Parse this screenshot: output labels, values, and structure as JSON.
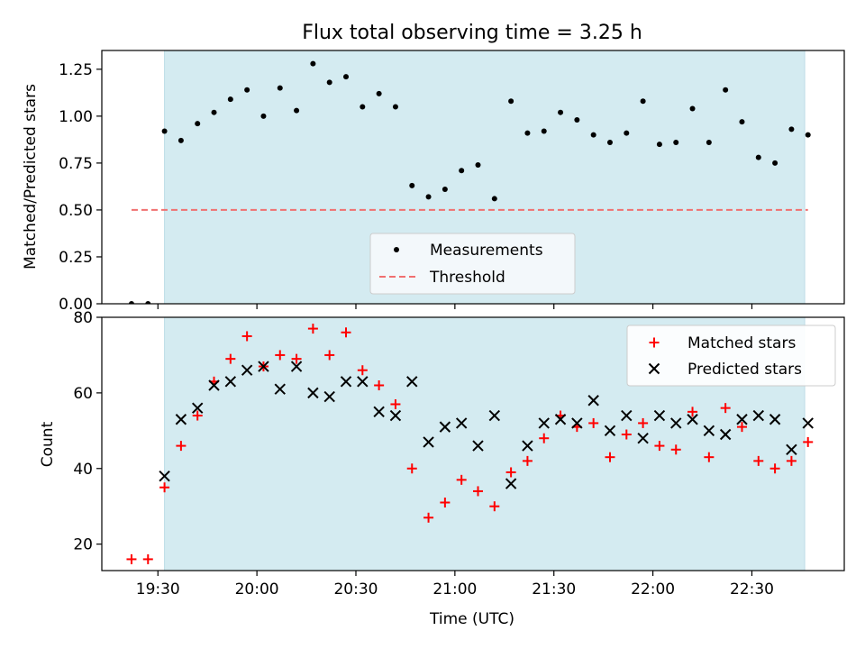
{
  "chart_data": [
    {
      "type": "scatter",
      "title": "Flux total observing time = 3.25 h",
      "ylabel": "Matched/Predicted stars",
      "xlabel": "",
      "xlim": [
        "19:13",
        "22:58"
      ],
      "ylim": [
        0,
        1.35
      ],
      "x_ticks": [
        "19:30",
        "20:00",
        "20:30",
        "21:00",
        "21:30",
        "22:00",
        "22:30"
      ],
      "y_ticks": [
        "0.00",
        "0.25",
        "0.50",
        "0.75",
        "1.00",
        "1.25"
      ],
      "shaded_span": [
        "19:32",
        "22:46"
      ],
      "shaded_color": "#d4ebf1",
      "legend_position": "lower center",
      "series": [
        {
          "name": "Measurements",
          "marker": "dot",
          "color": "#000000",
          "x": [
            "19:22",
            "19:27",
            "19:32",
            "19:37",
            "19:42",
            "19:47",
            "19:52",
            "19:57",
            "20:02",
            "20:07",
            "20:12",
            "20:17",
            "20:22",
            "20:27",
            "20:32",
            "20:37",
            "20:42",
            "20:47",
            "20:52",
            "20:57",
            "21:02",
            "21:07",
            "21:12",
            "21:17",
            "21:22",
            "21:27",
            "21:32",
            "21:37",
            "21:42",
            "21:47",
            "21:52",
            "21:57",
            "22:02",
            "22:07",
            "22:12",
            "22:17",
            "22:22",
            "22:27",
            "22:32",
            "22:37",
            "22:42",
            "22:47"
          ],
          "values": [
            0.0,
            0.0,
            0.92,
            0.87,
            0.96,
            1.02,
            1.09,
            1.14,
            1.0,
            1.15,
            1.03,
            1.28,
            1.18,
            1.21,
            1.05,
            1.12,
            1.05,
            0.63,
            0.57,
            0.61,
            0.71,
            0.74,
            0.56,
            1.08,
            0.91,
            0.92,
            1.02,
            0.98,
            0.9,
            0.86,
            0.91,
            1.08,
            0.85,
            0.86,
            1.04,
            0.86,
            1.14,
            0.97,
            0.78,
            0.75,
            0.93,
            0.9
          ]
        },
        {
          "name": "Threshold",
          "style": "dashed",
          "color": "#f07070",
          "x": [
            "19:22",
            "22:47"
          ],
          "values": [
            0.5,
            0.5
          ]
        }
      ]
    },
    {
      "type": "scatter",
      "title": "",
      "xlabel": "Time (UTC)",
      "ylabel": "Count",
      "xlim": [
        "19:13",
        "22:58"
      ],
      "ylim": [
        13,
        80
      ],
      "x_ticks": [
        "19:30",
        "20:00",
        "20:30",
        "21:00",
        "21:30",
        "22:00",
        "22:30"
      ],
      "y_ticks": [
        "20",
        "40",
        "60",
        "80"
      ],
      "shaded_span": [
        "19:32",
        "22:46"
      ],
      "shaded_color": "#d4ebf1",
      "legend_position": "upper right",
      "series": [
        {
          "name": "Matched stars",
          "marker": "+",
          "color": "#ff0000",
          "x": [
            "19:22",
            "19:27",
            "19:32",
            "19:37",
            "19:42",
            "19:47",
            "19:52",
            "19:57",
            "20:02",
            "20:07",
            "20:12",
            "20:17",
            "20:22",
            "20:27",
            "20:32",
            "20:37",
            "20:42",
            "20:47",
            "20:52",
            "20:57",
            "21:02",
            "21:07",
            "21:12",
            "21:17",
            "21:22",
            "21:27",
            "21:32",
            "21:37",
            "21:42",
            "21:47",
            "21:52",
            "21:57",
            "22:02",
            "22:07",
            "22:12",
            "22:17",
            "22:22",
            "22:27",
            "22:32",
            "22:37",
            "22:42",
            "22:47"
          ],
          "values": [
            16,
            16,
            35,
            46,
            54,
            63,
            69,
            75,
            67,
            70,
            69,
            77,
            70,
            76,
            66,
            62,
            57,
            40,
            27,
            31,
            37,
            34,
            30,
            39,
            42,
            48,
            54,
            51,
            52,
            43,
            49,
            52,
            46,
            45,
            55,
            43,
            56,
            51,
            42,
            40,
            42,
            47
          ]
        },
        {
          "name": "Predicted stars",
          "marker": "x",
          "color": "#000000",
          "x": [
            "19:32",
            "19:37",
            "19:42",
            "19:47",
            "19:52",
            "19:57",
            "20:02",
            "20:07",
            "20:12",
            "20:17",
            "20:22",
            "20:27",
            "20:32",
            "20:37",
            "20:42",
            "20:47",
            "20:52",
            "20:57",
            "21:02",
            "21:07",
            "21:12",
            "21:17",
            "21:22",
            "21:27",
            "21:32",
            "21:37",
            "21:42",
            "21:47",
            "21:52",
            "21:57",
            "22:02",
            "22:07",
            "22:12",
            "22:17",
            "22:22",
            "22:27",
            "22:32",
            "22:37",
            "22:42",
            "22:47"
          ],
          "values": [
            38,
            53,
            56,
            62,
            63,
            66,
            67,
            61,
            67,
            60,
            59,
            63,
            63,
            55,
            54,
            63,
            47,
            51,
            52,
            46,
            54,
            36,
            46,
            52,
            53,
            52,
            58,
            50,
            54,
            48,
            54,
            52,
            53,
            50,
            49,
            53,
            54,
            53,
            45,
            52
          ]
        }
      ]
    }
  ]
}
